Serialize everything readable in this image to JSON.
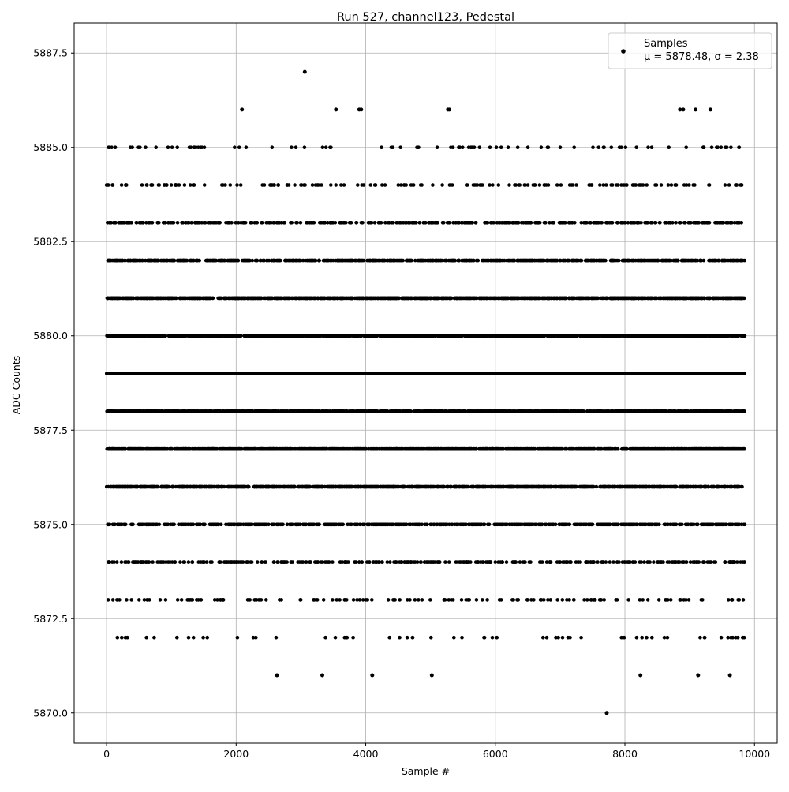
{
  "chart_data": {
    "type": "scatter",
    "title": "Run 527, channel123, Pedestal",
    "xlabel": "Sample #",
    "ylabel": "ADC Counts",
    "xlim": [
      -500,
      10350
    ],
    "ylim": [
      5869.2,
      5888.3
    ],
    "xticks": [
      0,
      2000,
      4000,
      6000,
      8000,
      10000
    ],
    "xtick_labels": [
      "0",
      "2000",
      "4000",
      "6000",
      "8000",
      "10000"
    ],
    "yticks": [
      5870.0,
      5872.5,
      5875.0,
      5877.5,
      5880.0,
      5882.5,
      5885.0,
      5887.5
    ],
    "ytick_labels": [
      "5870.0",
      "5872.5",
      "5875.0",
      "5877.5",
      "5880.0",
      "5882.5",
      "5885.0",
      "5887.5"
    ],
    "grid": true,
    "legend": {
      "placement": "top-right",
      "label": "Samples",
      "stats": "μ = 5878.48, σ = 2.38"
    },
    "marker_color": "#000000",
    "series": [
      {
        "x_range": [
          0,
          9850
        ],
        "sample_count": 9850,
        "rare_points": [
          {
            "x": 3060,
            "y": 5887
          },
          {
            "x": 2090,
            "y": 5886
          },
          {
            "x": 3540,
            "y": 5886
          },
          {
            "x": 3900,
            "y": 5886
          },
          {
            "x": 3930,
            "y": 5886
          },
          {
            "x": 5270,
            "y": 5886
          },
          {
            "x": 5290,
            "y": 5886
          },
          {
            "x": 8850,
            "y": 5886
          },
          {
            "x": 8900,
            "y": 5886
          },
          {
            "x": 9090,
            "y": 5886
          },
          {
            "x": 9320,
            "y": 5886
          },
          {
            "x": 2630,
            "y": 5871
          },
          {
            "x": 3330,
            "y": 5871
          },
          {
            "x": 4100,
            "y": 5871
          },
          {
            "x": 5020,
            "y": 5871
          },
          {
            "x": 8240,
            "y": 5871
          },
          {
            "x": 9130,
            "y": 5871
          },
          {
            "x": 9620,
            "y": 5871
          },
          {
            "x": 7720,
            "y": 5870
          }
        ],
        "level_counts": [
          {
            "y": 5885,
            "count": 90
          },
          {
            "y": 5884,
            "count": 170
          },
          {
            "y": 5883,
            "count": 420
          },
          {
            "y": 5882,
            "count": 780
          },
          {
            "y": 5881,
            "count": 1250
          },
          {
            "y": 5880,
            "count": 1500
          },
          {
            "y": 5879,
            "count": 1500
          },
          {
            "y": 5878,
            "count": 1450
          },
          {
            "y": 5877,
            "count": 1250
          },
          {
            "y": 5876,
            "count": 950
          },
          {
            "y": 5875,
            "count": 650
          },
          {
            "y": 5874,
            "count": 380
          },
          {
            "y": 5873,
            "count": 140
          },
          {
            "y": 5872,
            "count": 60
          }
        ]
      }
    ]
  }
}
